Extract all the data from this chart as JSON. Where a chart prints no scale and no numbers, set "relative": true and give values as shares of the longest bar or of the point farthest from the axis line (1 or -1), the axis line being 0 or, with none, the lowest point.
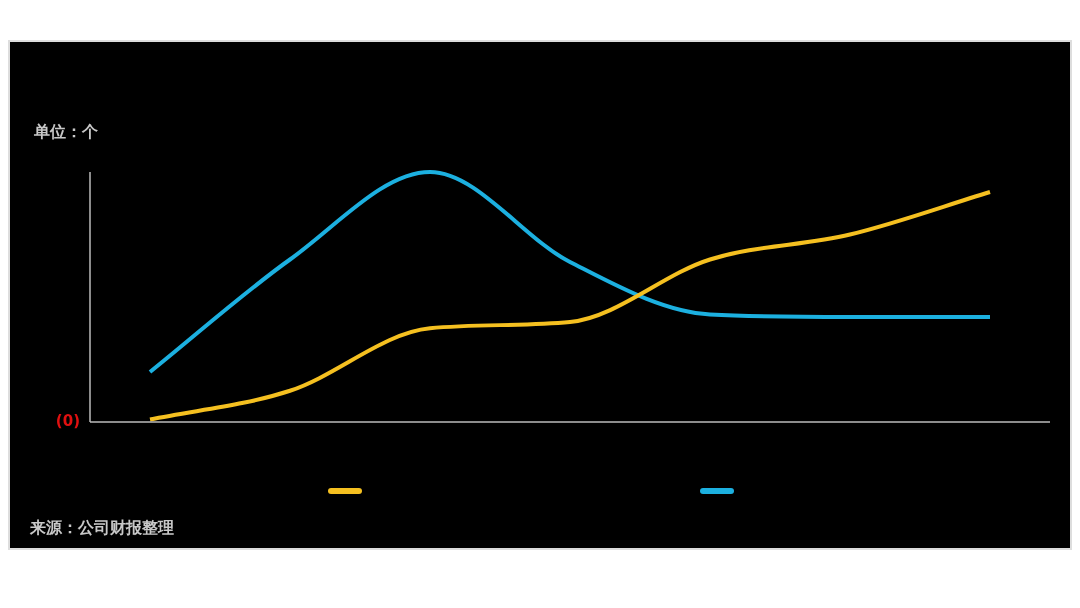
{
  "chart_data": {
    "type": "line",
    "relative": true,
    "ylabel": "单位：个",
    "categories": [
      null,
      null,
      null,
      null,
      null,
      null,
      null
    ],
    "series": [
      {
        "color": "#f5c020",
        "values": [
          0.01,
          0.125,
          0.375,
          0.4,
          0.65,
          0.75,
          0.92
        ]
      },
      {
        "color": "#1cb0e0",
        "values": [
          0.2,
          0.65,
          1,
          0.64,
          0.43,
          0.42,
          0.42
        ]
      }
    ],
    "marker": "none",
    "line_style": "solid",
    "annotations": [
      "(0)",
      "来源：公司财报整理"
    ]
  }
}
